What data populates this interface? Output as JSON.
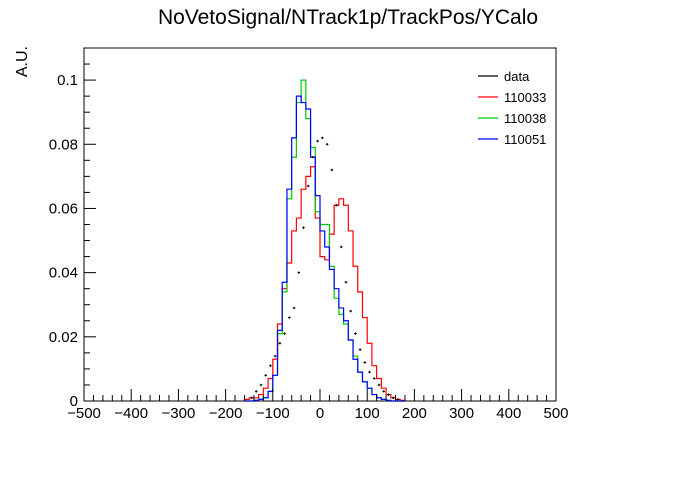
{
  "chart_data": {
    "type": "step",
    "title": "NoVetoSignal/NTrack1p/TrackPos/YCalo",
    "xlabel": "",
    "ylabel": "A.U.",
    "xlim": [
      -500,
      500
    ],
    "ylim": [
      0,
      0.11
    ],
    "x_ticks": [
      -500,
      -400,
      -300,
      -200,
      -100,
      0,
      100,
      200,
      300,
      400,
      500
    ],
    "x_tick_labels": [
      "−500",
      "−400",
      "−300",
      "−200",
      "−100",
      "0",
      "100",
      "200",
      "300",
      "400",
      "500"
    ],
    "y_ticks": [
      0,
      0.02,
      0.04,
      0.06,
      0.08,
      0.1
    ],
    "y_tick_labels": [
      "0",
      "0.02",
      "0.04",
      "0.06",
      "0.08",
      "0.1"
    ],
    "bin_width": 10,
    "grid": false,
    "legend_position": "top-right",
    "series": [
      {
        "name": "data",
        "style": "points",
        "color": "#000000",
        "x": [
          -145,
          -135,
          -125,
          -115,
          -105,
          -95,
          -85,
          -75,
          -65,
          -55,
          -45,
          -35,
          -25,
          -15,
          -5,
          5,
          15,
          25,
          35,
          45,
          55,
          65,
          75,
          85,
          95,
          105,
          115,
          125,
          135,
          145,
          155,
          165
        ],
        "y": [
          0.001,
          0.003,
          0.005,
          0.008,
          0.011,
          0.014,
          0.018,
          0.021,
          0.026,
          0.029,
          0.04,
          0.054,
          0.067,
          0.076,
          0.081,
          0.082,
          0.08,
          0.072,
          0.061,
          0.048,
          0.037,
          0.028,
          0.021,
          0.016,
          0.012,
          0.009,
          0.007,
          0.005,
          0.003,
          0.002,
          0.001,
          0.0005
        ]
      },
      {
        "name": "110033",
        "style": "step",
        "color": "#ff0000",
        "x_edges": [
          -160,
          -150,
          -140,
          -130,
          -120,
          -110,
          -100,
          -90,
          -80,
          -70,
          -60,
          -50,
          -40,
          -30,
          -20,
          -10,
          0,
          10,
          20,
          30,
          40,
          50,
          60,
          70,
          80,
          90,
          100,
          110,
          120,
          130,
          140,
          150,
          160,
          170,
          180
        ],
        "values": [
          0.0005,
          0.001,
          0.001,
          0.002,
          0.004,
          0.007,
          0.013,
          0.024,
          0.035,
          0.043,
          0.053,
          0.057,
          0.066,
          0.07,
          0.073,
          0.057,
          0.045,
          0.044,
          0.052,
          0.061,
          0.063,
          0.061,
          0.053,
          0.042,
          0.034,
          0.026,
          0.018,
          0.011,
          0.007,
          0.004,
          0.002,
          0.001,
          0.0005,
          0.0002
        ]
      },
      {
        "name": "110038",
        "style": "step",
        "color": "#00cc00",
        "x_edges": [
          -160,
          -150,
          -140,
          -130,
          -120,
          -110,
          -100,
          -90,
          -80,
          -70,
          -60,
          -50,
          -40,
          -30,
          -20,
          -10,
          0,
          10,
          20,
          30,
          40,
          50,
          60,
          70,
          80,
          90,
          100,
          110,
          120,
          130,
          140,
          150,
          160,
          170,
          180
        ],
        "values": [
          0.0,
          0.0,
          0.0002,
          0.0005,
          0.001,
          0.003,
          0.008,
          0.021,
          0.034,
          0.063,
          0.076,
          0.093,
          0.1,
          0.088,
          0.079,
          0.059,
          0.055,
          0.055,
          0.042,
          0.032,
          0.027,
          0.024,
          0.019,
          0.014,
          0.009,
          0.006,
          0.004,
          0.002,
          0.001,
          0.0005,
          0.0002,
          0.0,
          0.0,
          0.0
        ]
      },
      {
        "name": "110051",
        "style": "step",
        "color": "#0000ff",
        "x_edges": [
          -160,
          -150,
          -140,
          -130,
          -120,
          -110,
          -100,
          -90,
          -80,
          -70,
          -60,
          -50,
          -40,
          -30,
          -20,
          -10,
          0,
          10,
          20,
          30,
          40,
          50,
          60,
          70,
          80,
          90,
          100,
          110,
          120,
          130,
          140,
          150,
          160,
          170,
          180
        ],
        "values": [
          0.0,
          0.0,
          0.0002,
          0.0005,
          0.001,
          0.003,
          0.008,
          0.022,
          0.037,
          0.066,
          0.082,
          0.095,
          0.093,
          0.091,
          0.076,
          0.064,
          0.053,
          0.048,
          0.041,
          0.035,
          0.029,
          0.025,
          0.019,
          0.013,
          0.009,
          0.006,
          0.004,
          0.002,
          0.001,
          0.0005,
          0.0002,
          0.0,
          0.0,
          0.0
        ]
      }
    ]
  }
}
